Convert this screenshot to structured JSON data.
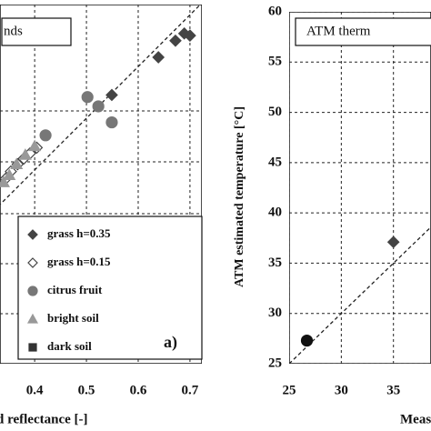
{
  "chart_data": [
    {
      "type": "scatter",
      "title": "nds",
      "x_label": "d reflectance [-]",
      "annotation": "a)",
      "xlim": [
        0.333,
        0.723
      ],
      "ylim": [
        0.025,
        0.72
      ],
      "xticks": [
        0.4,
        0.5,
        0.6,
        0.7
      ],
      "grid": true,
      "identity_line": true,
      "legend": "lower right",
      "series": [
        {
          "name": "grass h=0.35",
          "marker": "diamond",
          "filled": true,
          "color": "#444",
          "x": [
            0.549,
            0.639,
            0.672,
            0.689,
            0.7
          ],
          "values": [
            0.545,
            0.618,
            0.65,
            0.664,
            0.66
          ]
        },
        {
          "name": "grass h=0.15",
          "marker": "diamond",
          "filled": false,
          "color": "#444",
          "x": [
            0.404,
            0.391,
            0.379,
            0.367,
            0.354,
            0.344
          ],
          "values": [
            0.443,
            0.432,
            0.422,
            0.411,
            0.397,
            0.383
          ]
        },
        {
          "name": "citrus fruit",
          "marker": "circle",
          "filled": true,
          "color": "#777",
          "x": [
            0.421,
            0.502,
            0.523,
            0.549
          ],
          "values": [
            0.467,
            0.541,
            0.523,
            0.492
          ]
        },
        {
          "name": "bright soil",
          "marker": "triangle",
          "filled": true,
          "color": "#999",
          "x": [
            0.4,
            0.382,
            0.365,
            0.351,
            0.34
          ],
          "values": [
            0.446,
            0.429,
            0.411,
            0.39,
            0.376
          ]
        },
        {
          "name": "dark soil",
          "marker": "square",
          "filled": true,
          "color": "#333",
          "x": [],
          "values": []
        }
      ]
    },
    {
      "type": "scatter",
      "title": "ATM therm",
      "y_label": "ATM estimated temperature [°C]",
      "x_label": "Measu",
      "xlim": [
        25,
        38.6
      ],
      "ylim": [
        25,
        60
      ],
      "xticks": [
        25,
        30,
        35
      ],
      "yticks": [
        25,
        30,
        35,
        40,
        45,
        50,
        55,
        60
      ],
      "grid": true,
      "identity_line": true,
      "series": [
        {
          "name": null,
          "marker": "diamond",
          "filled": true,
          "color": "#444",
          "x": [
            35
          ],
          "values": [
            37.1
          ]
        },
        {
          "name": null,
          "marker": "circle",
          "filled": true,
          "color": "#111",
          "x": [
            26.7
          ],
          "values": [
            27.3
          ]
        }
      ]
    }
  ]
}
